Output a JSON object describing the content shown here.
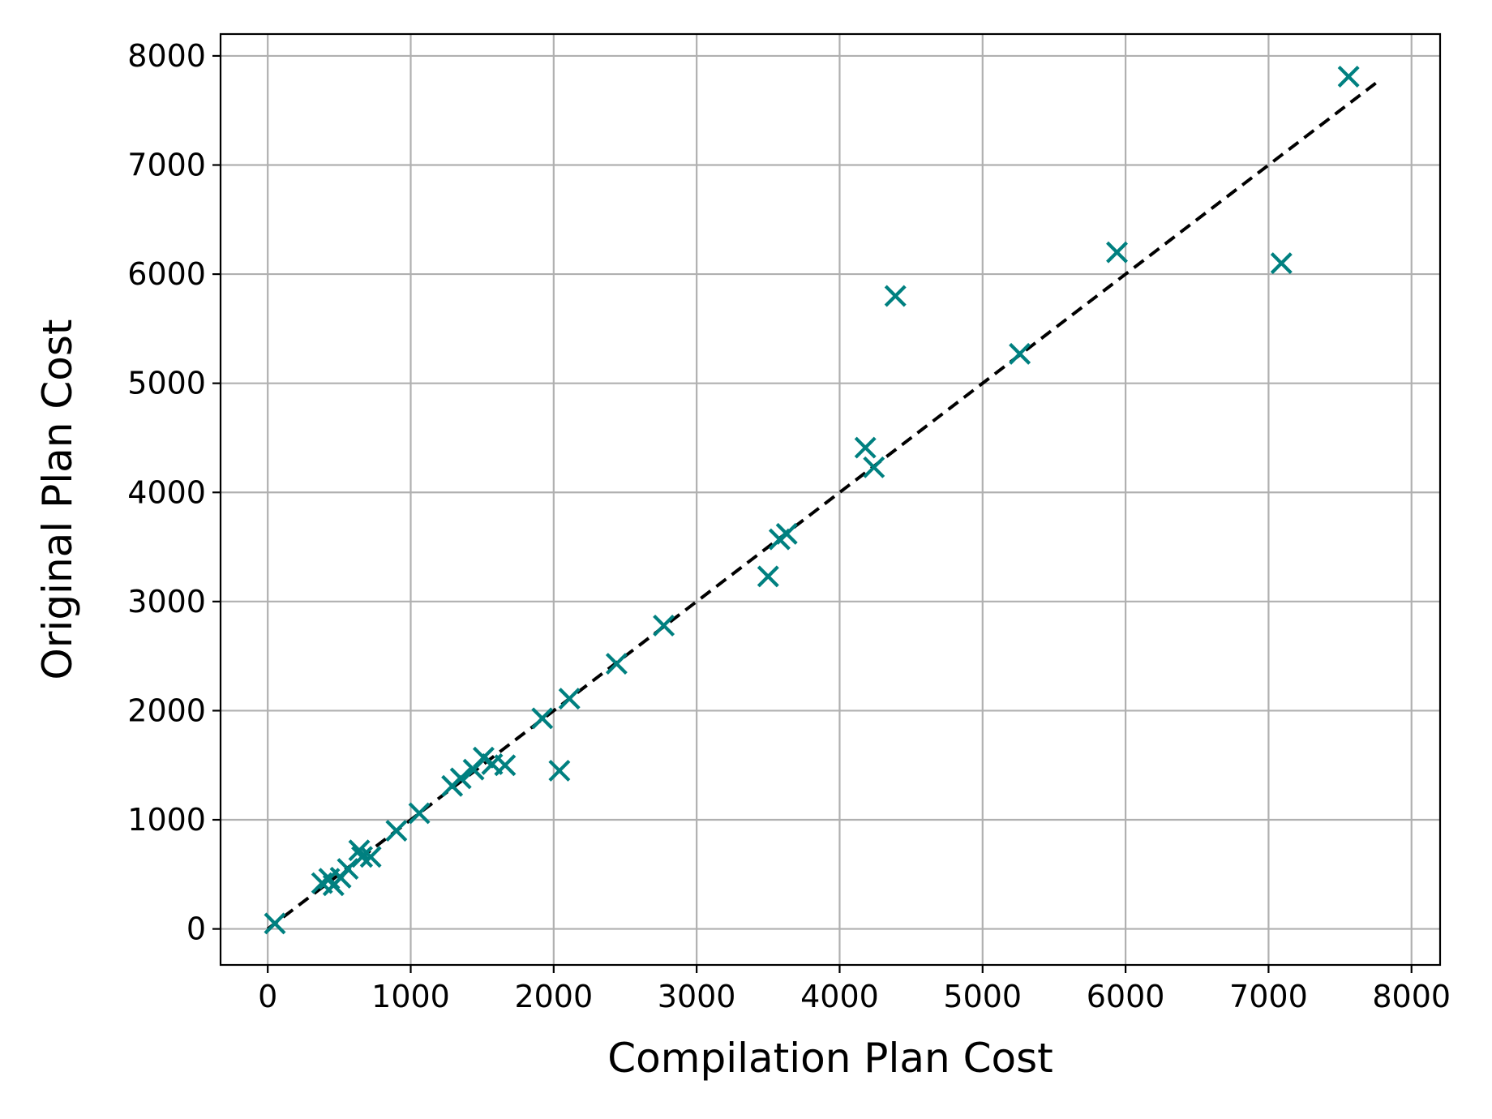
{
  "chart_data": {
    "type": "scatter",
    "title": "",
    "xlabel": "Compilation Plan Cost",
    "ylabel": "Original Plan Cost",
    "xlim": [
      -330,
      8200
    ],
    "ylim": [
      -330,
      8200
    ],
    "x_ticks": [
      0,
      1000,
      2000,
      3000,
      4000,
      5000,
      6000,
      7000,
      8000
    ],
    "y_ticks": [
      0,
      1000,
      2000,
      3000,
      4000,
      5000,
      6000,
      7000,
      8000
    ],
    "x_tick_labels": [
      "0",
      "1000",
      "2000",
      "3000",
      "4000",
      "5000",
      "6000",
      "7000",
      "8000"
    ],
    "y_tick_labels": [
      "0",
      "1000",
      "2000",
      "3000",
      "4000",
      "5000",
      "6000",
      "7000",
      "8000"
    ],
    "grid": true,
    "marker": "x",
    "marker_color": "#008080",
    "points": [
      {
        "x": 50,
        "y": 50
      },
      {
        "x": 380,
        "y": 420
      },
      {
        "x": 430,
        "y": 460
      },
      {
        "x": 460,
        "y": 400
      },
      {
        "x": 510,
        "y": 470
      },
      {
        "x": 560,
        "y": 550
      },
      {
        "x": 640,
        "y": 720
      },
      {
        "x": 660,
        "y": 660
      },
      {
        "x": 720,
        "y": 660
      },
      {
        "x": 900,
        "y": 900
      },
      {
        "x": 1060,
        "y": 1060
      },
      {
        "x": 1290,
        "y": 1310
      },
      {
        "x": 1350,
        "y": 1380
      },
      {
        "x": 1440,
        "y": 1460
      },
      {
        "x": 1510,
        "y": 1570
      },
      {
        "x": 1570,
        "y": 1510
      },
      {
        "x": 1660,
        "y": 1500
      },
      {
        "x": 1920,
        "y": 1930
      },
      {
        "x": 2040,
        "y": 1450
      },
      {
        "x": 2110,
        "y": 2110
      },
      {
        "x": 2440,
        "y": 2430
      },
      {
        "x": 2770,
        "y": 2780
      },
      {
        "x": 3500,
        "y": 3230
      },
      {
        "x": 3580,
        "y": 3570
      },
      {
        "x": 3630,
        "y": 3620
      },
      {
        "x": 4180,
        "y": 4410
      },
      {
        "x": 4240,
        "y": 4230
      },
      {
        "x": 4390,
        "y": 5800
      },
      {
        "x": 5260,
        "y": 5270
      },
      {
        "x": 5940,
        "y": 6200
      },
      {
        "x": 7090,
        "y": 6100
      },
      {
        "x": 7560,
        "y": 7810
      }
    ],
    "reference_line": {
      "style": "dashed",
      "color": "#000000",
      "from": [
        0,
        0
      ],
      "to": [
        7760,
        7760
      ]
    }
  }
}
